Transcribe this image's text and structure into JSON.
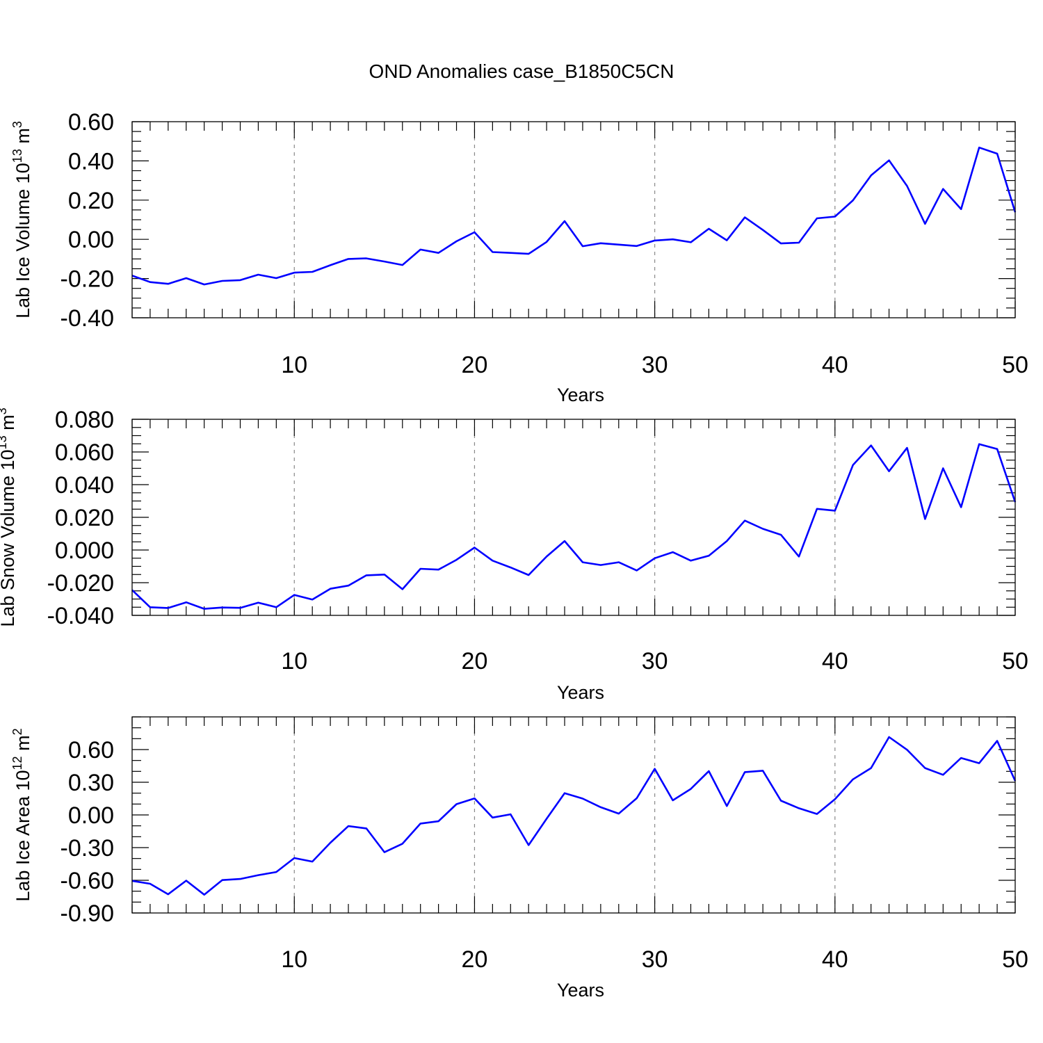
{
  "figure": {
    "title": "OND Anomalies case_B1850C5CN"
  },
  "chart_data": [
    {
      "type": "line",
      "ylabel": "Lab Ice Volume 10",
      "ylabel_sup": "13",
      "ylabel_unit": "m",
      "ylabel_unit_sup": "3",
      "xlabel": "Years",
      "xlim": [
        1,
        50
      ],
      "ylim": [
        -0.4,
        0.6
      ],
      "yticks": [
        -0.4,
        -0.2,
        0.0,
        0.2,
        0.4,
        0.6
      ],
      "ytick_labels": [
        "-0.40",
        "-0.20",
        "0.00",
        "0.20",
        "0.40",
        "0.60"
      ],
      "ytick_minor_step": 0.05,
      "xticks": [
        10,
        20,
        30,
        40,
        50
      ],
      "xtick_labels": [
        "10",
        "20",
        "30",
        "40",
        "50"
      ],
      "grid": "vertical dashed at major x ticks",
      "color": "#0000ff",
      "x": [
        1,
        2,
        3,
        4,
        5,
        6,
        7,
        8,
        9,
        10,
        11,
        12,
        13,
        14,
        15,
        16,
        17,
        18,
        19,
        20,
        21,
        22,
        23,
        24,
        25,
        26,
        27,
        28,
        29,
        30,
        31,
        32,
        33,
        34,
        35,
        36,
        37,
        38,
        39,
        40,
        41,
        42,
        43,
        44,
        45,
        46,
        47,
        48,
        49,
        50
      ],
      "values": [
        -0.185,
        -0.218,
        -0.227,
        -0.198,
        -0.23,
        -0.212,
        -0.208,
        -0.18,
        -0.198,
        -0.17,
        -0.166,
        -0.132,
        -0.1,
        -0.097,
        -0.113,
        -0.131,
        -0.052,
        -0.069,
        -0.01,
        0.036,
        -0.065,
        -0.069,
        -0.074,
        -0.013,
        0.093,
        -0.035,
        -0.02,
        -0.027,
        -0.034,
        -0.006,
        0.0,
        -0.015,
        0.054,
        -0.005,
        0.112,
        0.048,
        -0.021,
        -0.017,
        0.107,
        0.116,
        0.199,
        0.326,
        0.403,
        0.272,
        0.079,
        0.257,
        0.154,
        0.468,
        0.437,
        0.138
      ]
    },
    {
      "type": "line",
      "ylabel": "Lab Snow Volume 10",
      "ylabel_sup": "13",
      "ylabel_unit": "m",
      "ylabel_unit_sup": "3",
      "xlabel": "Years",
      "xlim": [
        1,
        50
      ],
      "ylim": [
        -0.04,
        0.08
      ],
      "yticks": [
        -0.04,
        -0.02,
        0.0,
        0.02,
        0.04,
        0.06,
        0.08
      ],
      "ytick_labels": [
        "-0.040",
        "-0.020",
        "0.000",
        "0.020",
        "0.040",
        "0.060",
        "0.080"
      ],
      "ytick_minor_step": 0.005,
      "xticks": [
        10,
        20,
        30,
        40,
        50
      ],
      "xtick_labels": [
        "10",
        "20",
        "30",
        "40",
        "50"
      ],
      "grid": "vertical dashed at major x ticks",
      "color": "#0000ff",
      "x": [
        1,
        2,
        3,
        4,
        5,
        6,
        7,
        8,
        9,
        10,
        11,
        12,
        13,
        14,
        15,
        16,
        17,
        18,
        19,
        20,
        21,
        22,
        23,
        24,
        25,
        26,
        27,
        28,
        29,
        30,
        31,
        32,
        33,
        34,
        35,
        36,
        37,
        38,
        39,
        40,
        41,
        42,
        43,
        44,
        45,
        46,
        47,
        48,
        49,
        50
      ],
      "values": [
        -0.0245,
        -0.035,
        -0.0355,
        -0.032,
        -0.036,
        -0.0352,
        -0.0354,
        -0.0322,
        -0.035,
        -0.0275,
        -0.0303,
        -0.0237,
        -0.0218,
        -0.0155,
        -0.015,
        -0.024,
        -0.0115,
        -0.012,
        -0.006,
        0.0015,
        -0.0065,
        -0.0107,
        -0.0153,
        -0.004,
        0.0055,
        -0.0075,
        -0.0092,
        -0.0075,
        -0.0125,
        -0.005,
        -0.0013,
        -0.0065,
        -0.0035,
        0.0055,
        0.018,
        0.013,
        0.0093,
        -0.004,
        0.0252,
        0.0241,
        0.052,
        0.064,
        0.0482,
        0.0625,
        0.019,
        0.05,
        0.0262,
        0.0648,
        0.0618,
        0.0293
      ]
    },
    {
      "type": "line",
      "ylabel": "Lab Ice Area 10",
      "ylabel_sup": "12",
      "ylabel_unit": "m",
      "ylabel_unit_sup": "2",
      "xlabel": "Years",
      "xlim": [
        1,
        50
      ],
      "ylim": [
        -0.9,
        0.9
      ],
      "yticks": [
        -0.9,
        -0.6,
        -0.3,
        0.0,
        0.3,
        0.6
      ],
      "ytick_labels": [
        "-0.90",
        "-0.60",
        "-0.30",
        "0.00",
        "0.30",
        "0.60"
      ],
      "ytick_minor_step": 0.1,
      "xticks": [
        10,
        20,
        30,
        40,
        50
      ],
      "xtick_labels": [
        "10",
        "20",
        "30",
        "40",
        "50"
      ],
      "grid": "vertical dashed at major x ticks",
      "color": "#0000ff",
      "x": [
        1,
        2,
        3,
        4,
        5,
        6,
        7,
        8,
        9,
        10,
        11,
        12,
        13,
        14,
        15,
        16,
        17,
        18,
        19,
        20,
        21,
        22,
        23,
        24,
        25,
        26,
        27,
        28,
        29,
        30,
        31,
        32,
        33,
        34,
        35,
        36,
        37,
        38,
        39,
        40,
        41,
        42,
        43,
        44,
        45,
        46,
        47,
        48,
        49,
        50
      ],
      "values": [
        -0.605,
        -0.632,
        -0.728,
        -0.603,
        -0.732,
        -0.598,
        -0.588,
        -0.553,
        -0.524,
        -0.396,
        -0.428,
        -0.255,
        -0.103,
        -0.124,
        -0.342,
        -0.264,
        -0.079,
        -0.058,
        0.099,
        0.152,
        -0.024,
        0.006,
        -0.277,
        -0.035,
        0.2,
        0.15,
        0.071,
        0.012,
        0.153,
        0.423,
        0.134,
        0.239,
        0.402,
        0.082,
        0.393,
        0.406,
        0.131,
        0.061,
        0.009,
        0.144,
        0.327,
        0.43,
        0.715,
        0.598,
        0.43,
        0.368,
        0.523,
        0.475,
        0.68,
        0.312
      ]
    }
  ]
}
